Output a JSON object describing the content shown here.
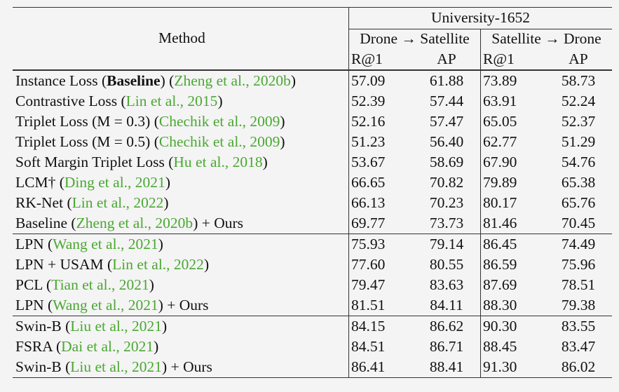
{
  "header": {
    "method": "Method",
    "dataset": "University-1652",
    "d2s": "Drone → Satellite",
    "s2d": "Satellite → Drone",
    "r1": "R@1",
    "ap": "AP"
  },
  "rows": [
    {
      "method": "Instance Loss (",
      "bold_part": "Baseline",
      "after": ")",
      "cite": "Zheng et al., 2020b",
      "values": [
        "57.09",
        "61.88",
        "73.89",
        "58.73"
      ]
    },
    {
      "method": "Contrastive Loss",
      "cite": "Lin et al., 2015",
      "values": [
        "52.39",
        "57.44",
        "63.91",
        "52.24"
      ]
    },
    {
      "method": "Triplet Loss (M = 0.3)",
      "cite": "Chechik et al., 2009",
      "values": [
        "52.16",
        "57.47",
        "65.05",
        "52.37"
      ]
    },
    {
      "method": "Triplet Loss (M = 0.5)",
      "cite": "Chechik et al., 2009",
      "values": [
        "51.23",
        "56.40",
        "62.77",
        "51.29"
      ]
    },
    {
      "method": "Soft Margin Triplet Loss",
      "cite": "Hu et al., 2018",
      "values": [
        "53.67",
        "58.69",
        "67.90",
        "54.76"
      ]
    },
    {
      "method": "LCM†",
      "cite": "Ding et al., 2021",
      "values": [
        "66.65",
        "70.82",
        "79.89",
        "65.38"
      ]
    },
    {
      "method": "RK-Net",
      "cite": "Lin et al., 2022",
      "values": [
        "66.13",
        "70.23",
        "80.17",
        "65.76"
      ]
    },
    {
      "method": "Baseline",
      "cite": "Zheng et al., 2020b",
      "suffix": "+ Ours",
      "values": [
        "69.77",
        "73.73",
        "81.46",
        "70.45"
      ]
    },
    {
      "method": "LPN",
      "cite": "Wang et al., 2021",
      "values": [
        "75.93",
        "79.14",
        "86.45",
        "74.49"
      ]
    },
    {
      "method": "LPN + USAM",
      "cite": "Lin et al., 2022",
      "values": [
        "77.60",
        "80.55",
        "86.59",
        "75.96"
      ]
    },
    {
      "method": "PCL",
      "cite": "Tian et al., 2021",
      "values": [
        "79.47",
        "83.63",
        "87.69",
        "78.51"
      ]
    },
    {
      "method": "LPN",
      "cite": "Wang et al., 2021",
      "suffix": "+ Ours",
      "values": [
        "81.51",
        "84.11",
        "88.30",
        "79.38"
      ]
    },
    {
      "method": "Swin-B",
      "cite": "Liu et al., 2021",
      "values": [
        "84.15",
        "86.62",
        "90.30",
        "83.55"
      ]
    },
    {
      "method": "FSRA",
      "cite": "Dai et al., 2021",
      "values": [
        "84.51",
        "86.71",
        "88.45",
        "83.47"
      ]
    },
    {
      "method": "Swin-B",
      "cite": "Liu et al., 2021",
      "suffix": "+ Ours",
      "values": [
        "86.41",
        "88.41",
        "91.30",
        "86.02"
      ]
    }
  ]
}
